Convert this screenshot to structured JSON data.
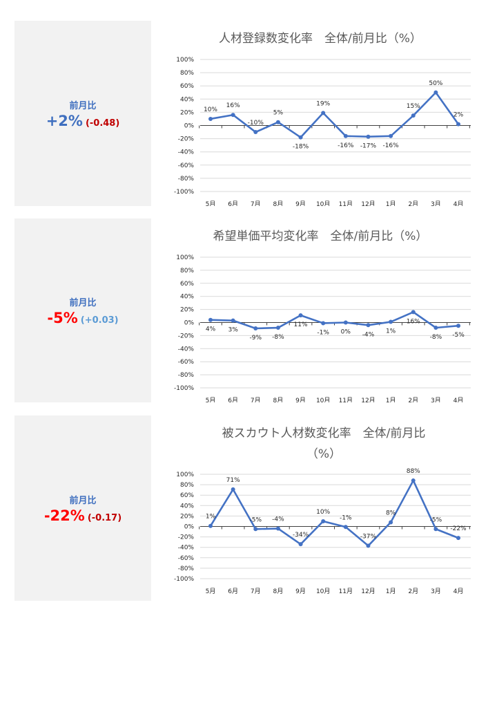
{
  "colors": {
    "blue": "#4472c4",
    "kpi_blue": "#3f6fbf",
    "red": "#ff0000",
    "dark_red": "#c00000",
    "light_blue": "#5b9bd5",
    "panel_bg": "#f2f2f2"
  },
  "panels": [
    {
      "kpi": {
        "label": "前月比",
        "value": "+2%",
        "diff": "(-0.48)",
        "value_color": "#3f6fbf",
        "diff_color": "#c00000"
      }
    },
    {
      "kpi": {
        "label": "前月比",
        "value": "-5%",
        "diff": "(+0.03)",
        "value_color": "#ff0000",
        "diff_color": "#5b9bd5"
      }
    },
    {
      "kpi": {
        "label": "前月比",
        "value": "-22%",
        "diff": "(-0.17)",
        "value_color": "#ff0000",
        "diff_color": "#c00000"
      }
    }
  ],
  "chart_data": [
    {
      "type": "line",
      "title": "人材登録数変化率　全体/前月比（%）",
      "categories": [
        "5月",
        "6月",
        "7月",
        "8月",
        "9月",
        "10月",
        "11月",
        "12月",
        "1月",
        "2月",
        "3月",
        "4月"
      ],
      "values": [
        10,
        16,
        -10,
        5,
        -18,
        19,
        -16,
        -17,
        -16,
        15,
        50,
        2
      ],
      "data_labels": [
        "10%",
        "16%",
        "-10%",
        "5%",
        "-18%",
        "19%",
        "-16%",
        "-17%",
        "-16%",
        "15%",
        "50%",
        "2%"
      ],
      "yticks": [
        "100%",
        "80%",
        "60%",
        "40%",
        "20%",
        "0%",
        "-20%",
        "-40%",
        "-60%",
        "-80%",
        "-100%"
      ],
      "ylim": [
        -100,
        100
      ],
      "grid": true
    },
    {
      "type": "line",
      "title": "希望単価平均変化率　全体/前月比（%）",
      "categories": [
        "5月",
        "6月",
        "7月",
        "8月",
        "9月",
        "10月",
        "11月",
        "12月",
        "1月",
        "2月",
        "3月",
        "4月"
      ],
      "values": [
        4,
        3,
        -9,
        -8,
        11,
        -1,
        0,
        -4,
        1,
        16,
        -8,
        -5
      ],
      "data_labels": [
        "4%",
        "3%",
        "-9%",
        "-8%",
        "11%",
        "-1%",
        "0%",
        "-4%",
        "1%",
        "16%",
        "-8%",
        "-5%"
      ],
      "yticks": [
        "100%",
        "80%",
        "60%",
        "40%",
        "20%",
        "0%",
        "-20%",
        "-40%",
        "-60%",
        "-80%",
        "-100%"
      ],
      "ylim": [
        -100,
        100
      ],
      "grid": true
    },
    {
      "type": "line",
      "title": "被スカウト人材数変化率　全体/前月比",
      "title_line2": "（%）",
      "categories": [
        "5月",
        "6月",
        "7月",
        "8月",
        "9月",
        "10月",
        "11月",
        "12月",
        "1月",
        "2月",
        "3月",
        "4月"
      ],
      "values": [
        1,
        71,
        -5,
        -4,
        -34,
        10,
        -1,
        -37,
        8,
        88,
        -5,
        -22
      ],
      "data_labels": [
        "1%",
        "71%",
        "-5%",
        "-4%",
        "-34%",
        "10%",
        "-1%",
        "-37%",
        "8%",
        "88%",
        "-5%",
        "-22%"
      ],
      "yticks": [
        "100%",
        "80%",
        "60%",
        "40%",
        "20%",
        "0%",
        "-20%",
        "-40%",
        "-60%",
        "-80%",
        "-100%"
      ],
      "ylim": [
        -100,
        100
      ],
      "grid": true
    }
  ]
}
